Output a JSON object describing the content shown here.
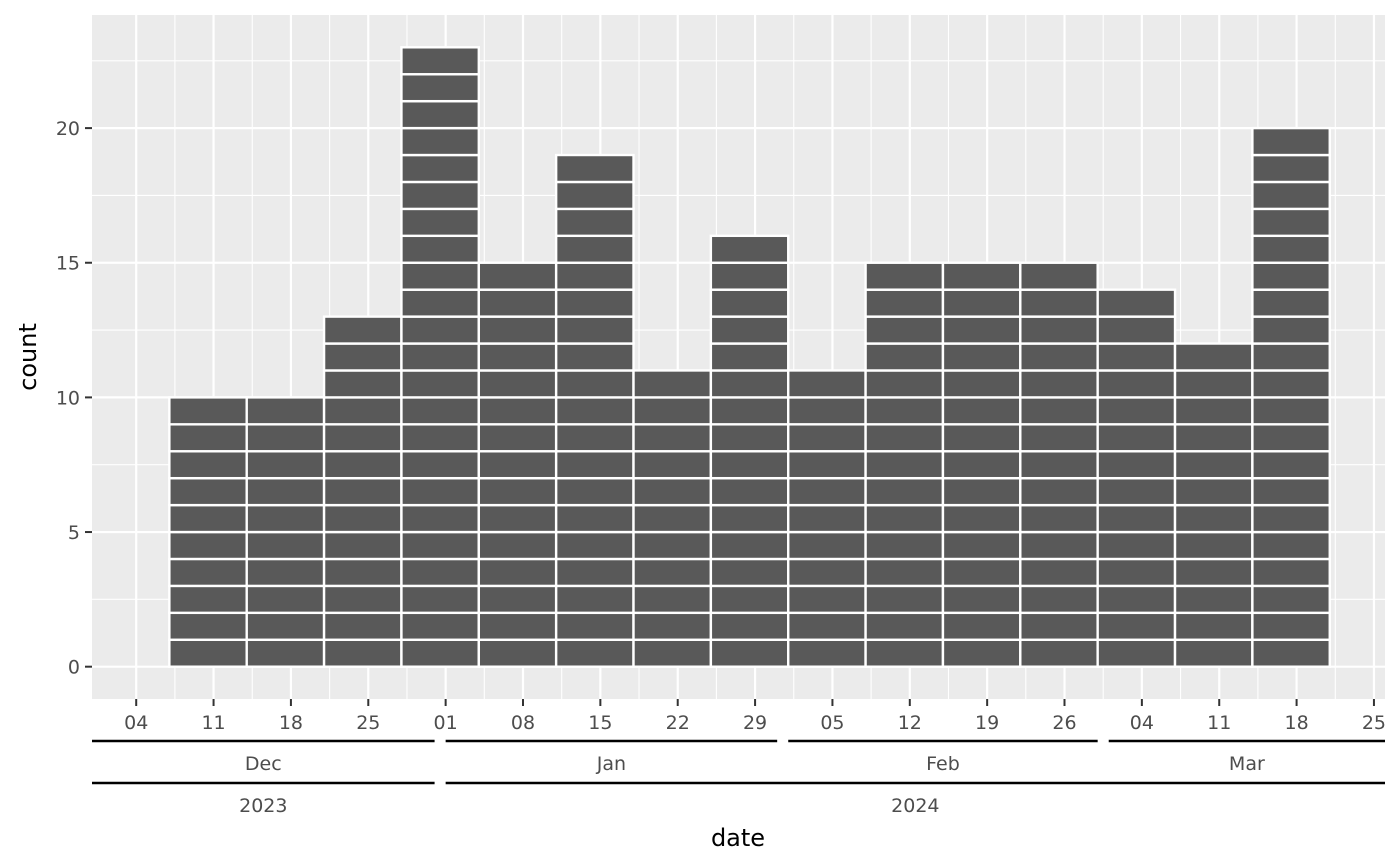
{
  "chart_data": {
    "type": "bar",
    "subtype": "stacked-dot-histogram",
    "title": "",
    "xlabel": "date",
    "ylabel": "count",
    "x_scale": "date",
    "bin_width_days": 7,
    "bins": [
      {
        "start": "2023-12-07",
        "end": "2023-12-14",
        "count": 10
      },
      {
        "start": "2023-12-14",
        "end": "2023-12-21",
        "count": 10
      },
      {
        "start": "2023-12-21",
        "end": "2023-12-28",
        "count": 13
      },
      {
        "start": "2023-12-28",
        "end": "2024-01-04",
        "count": 23
      },
      {
        "start": "2024-01-04",
        "end": "2024-01-11",
        "count": 15
      },
      {
        "start": "2024-01-11",
        "end": "2024-01-18",
        "count": 19
      },
      {
        "start": "2024-01-18",
        "end": "2024-01-25",
        "count": 11
      },
      {
        "start": "2024-01-25",
        "end": "2024-02-01",
        "count": 16
      },
      {
        "start": "2024-02-01",
        "end": "2024-02-08",
        "count": 11
      },
      {
        "start": "2024-02-08",
        "end": "2024-02-15",
        "count": 15
      },
      {
        "start": "2024-02-15",
        "end": "2024-02-22",
        "count": 15
      },
      {
        "start": "2024-02-22",
        "end": "2024-02-29",
        "count": 15
      },
      {
        "start": "2024-02-29",
        "end": "2024-03-07",
        "count": 14
      },
      {
        "start": "2024-03-07",
        "end": "2024-03-14",
        "count": 12
      },
      {
        "start": "2024-03-14",
        "end": "2024-03-21",
        "count": 20
      }
    ],
    "xlim": [
      "2023-11-30",
      "2024-03-26"
    ],
    "ylim": [
      -1.2,
      24.2
    ],
    "y_ticks": [
      0,
      5,
      10,
      15,
      20
    ],
    "x_ticks": [
      {
        "date": "2023-12-04",
        "label": "04"
      },
      {
        "date": "2023-12-11",
        "label": "11"
      },
      {
        "date": "2023-12-18",
        "label": "18"
      },
      {
        "date": "2023-12-25",
        "label": "25"
      },
      {
        "date": "2024-01-01",
        "label": "01"
      },
      {
        "date": "2024-01-08",
        "label": "08"
      },
      {
        "date": "2024-01-15",
        "label": "15"
      },
      {
        "date": "2024-01-22",
        "label": "22"
      },
      {
        "date": "2024-01-29",
        "label": "29"
      },
      {
        "date": "2024-02-05",
        "label": "05"
      },
      {
        "date": "2024-02-12",
        "label": "12"
      },
      {
        "date": "2024-02-19",
        "label": "19"
      },
      {
        "date": "2024-02-26",
        "label": "26"
      },
      {
        "date": "2024-03-04",
        "label": "04"
      },
      {
        "date": "2024-03-11",
        "label": "11"
      },
      {
        "date": "2024-03-18",
        "label": "18"
      },
      {
        "date": "2024-03-25",
        "label": "25"
      }
    ],
    "months": [
      {
        "label": "Dec",
        "start": "2023-11-30",
        "end": "2023-12-31"
      },
      {
        "label": "Jan",
        "start": "2024-01-01",
        "end": "2024-01-31"
      },
      {
        "label": "Feb",
        "start": "2024-02-01",
        "end": "2024-02-29"
      },
      {
        "label": "Mar",
        "start": "2024-03-01",
        "end": "2024-03-26"
      }
    ],
    "years": [
      {
        "label": "2023",
        "start": "2023-11-30",
        "end": "2023-12-31"
      },
      {
        "label": "2024",
        "start": "2024-01-01",
        "end": "2024-03-26"
      }
    ],
    "grid": true,
    "legend": "none",
    "colors": {
      "panel_background": "#ebebeb",
      "grid_line": "#ffffff",
      "bar_fill": "#595959",
      "bar_outline": "#ffffff",
      "axis_text": "#4d4d4d",
      "axis_title": "#000000",
      "bracket_line": "#000000"
    }
  }
}
